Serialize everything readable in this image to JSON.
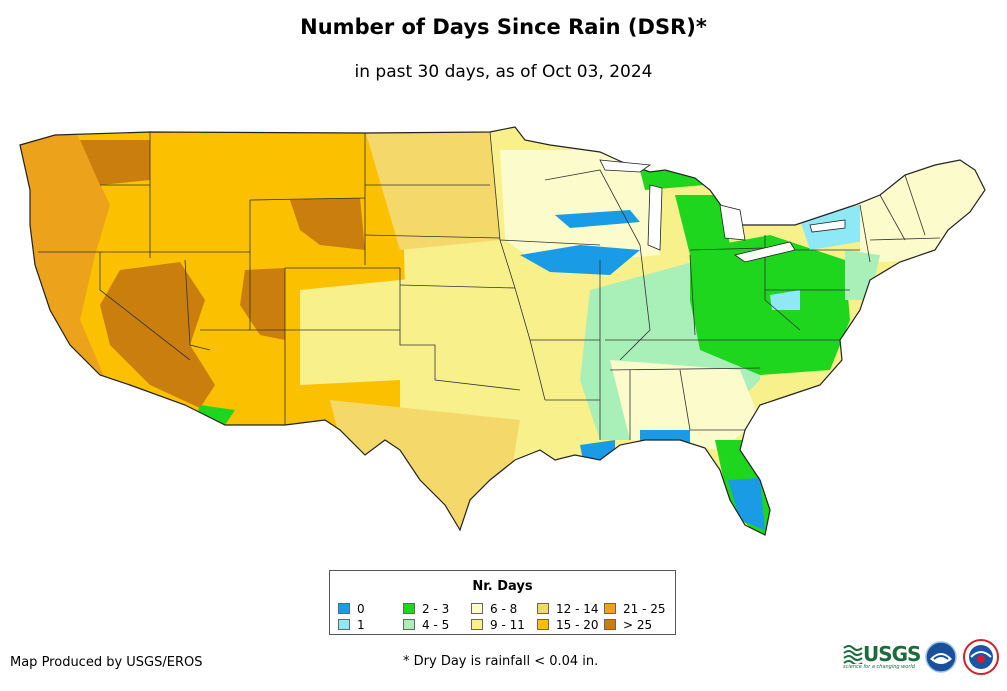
{
  "header": {
    "title": "Number of Days Since Rain (DSR)*",
    "subtitle": "in past 30 days, as of Oct 03, 2024"
  },
  "legend": {
    "title": "Nr. Days",
    "items": [
      {
        "label": "0",
        "color": "#1a9be6"
      },
      {
        "label": "1",
        "color": "#8fe8f5"
      },
      {
        "label": "2 - 3",
        "color": "#1fd61f"
      },
      {
        "label": "4 - 5",
        "color": "#a8f0b8"
      },
      {
        "label": "6 - 8",
        "color": "#fbfbcc"
      },
      {
        "label": "9 - 11",
        "color": "#f8f08a"
      },
      {
        "label": "12 - 14",
        "color": "#f5d86a"
      },
      {
        "label": "15 - 20",
        "color": "#fbc100"
      },
      {
        "label": "21 - 25",
        "color": "#eca21a"
      },
      {
        "label": "> 25",
        "color": "#c97e0d"
      }
    ]
  },
  "footer": {
    "credit": "Map Produced by USGS/EROS",
    "footnote": "* Dry Day is rainfall < 0.04 in."
  },
  "logos": {
    "usgs": "USGS",
    "usgs_tagline": "science for a changing world",
    "noaa_icon": "noaa-logo-icon",
    "nws_icon": "nws-logo-icon"
  }
}
